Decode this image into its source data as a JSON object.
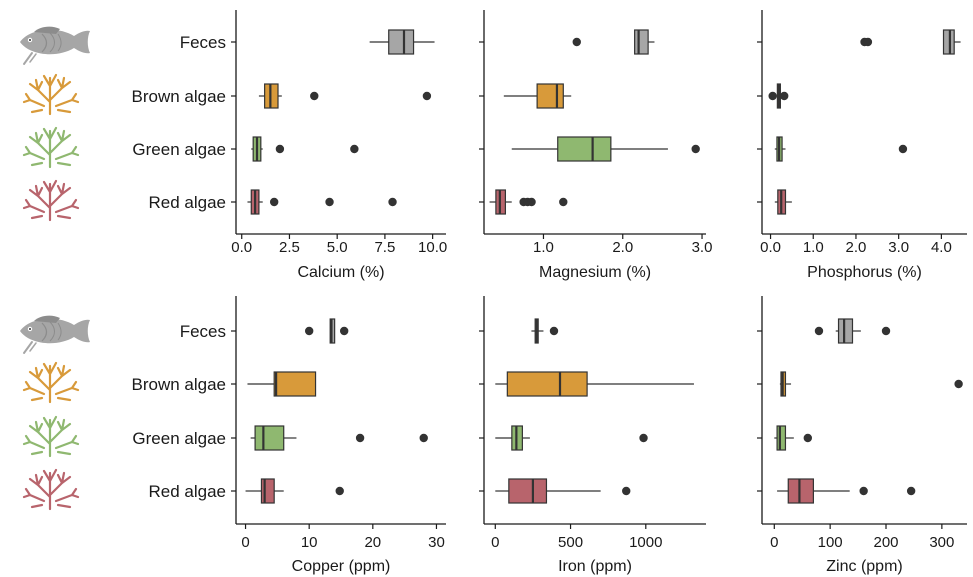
{
  "categories": [
    "Feces",
    "Brown algae",
    "Green algae",
    "Red algae"
  ],
  "colors": {
    "Feces": "#a6a6a6",
    "Brown algae": "#d89a3a",
    "Green algae": "#8fb870",
    "Red algae": "#b8646c",
    "outlier": "#333333",
    "line": "#333333"
  },
  "icons": [
    "fish-icon",
    "brown-algae-icon",
    "green-algae-icon",
    "red-algae-icon"
  ],
  "chart_data": [
    {
      "type": "boxplot",
      "xlabel": "Calcium (%)",
      "xlim": [
        -0.3,
        10.7
      ],
      "ticks": [
        0,
        2.5,
        5,
        7.5,
        10
      ],
      "tick_labels": [
        "0.0",
        "2.5",
        "5.0",
        "7.5",
        "10.0"
      ],
      "boxes": [
        {
          "category": "Feces",
          "whisker_low": 6.7,
          "q1": 7.7,
          "median": 8.5,
          "q3": 9.0,
          "whisker_high": 10.1,
          "outliers": []
        },
        {
          "category": "Brown algae",
          "whisker_low": 0.9,
          "q1": 1.2,
          "median": 1.5,
          "q3": 1.9,
          "whisker_high": 2.1,
          "outliers": [
            3.8,
            9.7
          ]
        },
        {
          "category": "Green algae",
          "whisker_low": 0.5,
          "q1": 0.6,
          "median": 0.8,
          "q3": 1.0,
          "whisker_high": 1.1,
          "outliers": [
            2.0,
            5.9
          ]
        },
        {
          "category": "Red algae",
          "whisker_low": 0.3,
          "q1": 0.5,
          "median": 0.7,
          "q3": 0.9,
          "whisker_high": 1.1,
          "outliers": [
            1.7,
            4.6,
            7.9
          ]
        }
      ]
    },
    {
      "type": "boxplot",
      "xlabel": "Magnesium (%)",
      "xlim": [
        0.25,
        3.05
      ],
      "ticks": [
        1,
        2,
        3
      ],
      "tick_labels": [
        "1.0",
        "2.0",
        "3.0"
      ],
      "boxes": [
        {
          "category": "Feces",
          "whisker_low": 2.15,
          "q1": 2.15,
          "median": 2.2,
          "q3": 2.32,
          "whisker_high": 2.4,
          "outliers": [
            1.42
          ]
        },
        {
          "category": "Brown algae",
          "whisker_low": 0.5,
          "q1": 0.92,
          "median": 1.17,
          "q3": 1.25,
          "whisker_high": 1.35,
          "outliers": []
        },
        {
          "category": "Green algae",
          "whisker_low": 0.6,
          "q1": 1.18,
          "median": 1.62,
          "q3": 1.85,
          "whisker_high": 2.57,
          "outliers": [
            2.92
          ]
        },
        {
          "category": "Red algae",
          "whisker_low": 0.32,
          "q1": 0.4,
          "median": 0.45,
          "q3": 0.52,
          "whisker_high": 0.6,
          "outliers": [
            0.75,
            0.8,
            0.85,
            1.25
          ]
        }
      ]
    },
    {
      "type": "boxplot",
      "xlabel": "Phosphorus (%)",
      "xlim": [
        -0.2,
        4.6
      ],
      "ticks": [
        0,
        1,
        2,
        3,
        4
      ],
      "tick_labels": [
        "0.0",
        "1.0",
        "2.0",
        "3.0",
        "4.0"
      ],
      "boxes": [
        {
          "category": "Feces",
          "whisker_low": 4.05,
          "q1": 4.05,
          "median": 4.2,
          "q3": 4.3,
          "whisker_high": 4.45,
          "outliers": [
            2.2,
            2.28
          ]
        },
        {
          "category": "Brown algae",
          "whisker_low": 0.12,
          "q1": 0.16,
          "median": 0.2,
          "q3": 0.23,
          "whisker_high": 0.27,
          "outliers": [
            0.05,
            0.32
          ]
        },
        {
          "category": "Green algae",
          "whisker_low": 0.1,
          "q1": 0.15,
          "median": 0.2,
          "q3": 0.27,
          "whisker_high": 0.35,
          "outliers": [
            3.1
          ]
        },
        {
          "category": "Red algae",
          "whisker_low": 0.1,
          "q1": 0.17,
          "median": 0.25,
          "q3": 0.35,
          "whisker_high": 0.5,
          "outliers": []
        }
      ]
    },
    {
      "type": "boxplot",
      "xlabel": "Copper (ppm)",
      "xlim": [
        -1.5,
        31.5
      ],
      "ticks": [
        0,
        10,
        20,
        30
      ],
      "tick_labels": [
        "0",
        "10",
        "20",
        "30"
      ],
      "boxes": [
        {
          "category": "Feces",
          "whisker_low": 13.3,
          "q1": 13.3,
          "median": 13.5,
          "q3": 14.0,
          "whisker_high": 14.0,
          "outliers": [
            10.0,
            15.5
          ]
        },
        {
          "category": "Brown algae",
          "whisker_low": 0.3,
          "q1": 4.5,
          "median": 4.8,
          "q3": 11.0,
          "whisker_high": 11.0,
          "outliers": []
        },
        {
          "category": "Green algae",
          "whisker_low": 0.8,
          "q1": 1.5,
          "median": 2.8,
          "q3": 6.0,
          "whisker_high": 8.0,
          "outliers": [
            18.0,
            28.0
          ]
        },
        {
          "category": "Red algae",
          "whisker_low": 0.0,
          "q1": 2.5,
          "median": 3.0,
          "q3": 4.5,
          "whisker_high": 6.0,
          "outliers": [
            14.8
          ]
        }
      ]
    },
    {
      "type": "boxplot",
      "xlabel": "Iron (ppm)",
      "xlim": [
        -75,
        1400
      ],
      "ticks": [
        0,
        500,
        1000
      ],
      "tick_labels": [
        "0",
        "500",
        "1000"
      ],
      "boxes": [
        {
          "category": "Feces",
          "whisker_low": 240,
          "q1": 265,
          "median": 275,
          "q3": 285,
          "whisker_high": 320,
          "outliers": [
            390
          ]
        },
        {
          "category": "Brown algae",
          "whisker_low": 0,
          "q1": 80,
          "median": 430,
          "q3": 610,
          "whisker_high": 1320,
          "outliers": []
        },
        {
          "category": "Green algae",
          "whisker_low": 0,
          "q1": 110,
          "median": 140,
          "q3": 180,
          "whisker_high": 230,
          "outliers": [
            985
          ]
        },
        {
          "category": "Red algae",
          "whisker_low": 0,
          "q1": 90,
          "median": 250,
          "q3": 340,
          "whisker_high": 700,
          "outliers": [
            870
          ]
        }
      ]
    },
    {
      "type": "boxplot",
      "xlabel": "Zinc (ppm)",
      "xlim": [
        -22,
        345
      ],
      "ticks": [
        0,
        100,
        200,
        300
      ],
      "tick_labels": [
        "0",
        "100",
        "200",
        "300"
      ],
      "boxes": [
        {
          "category": "Feces",
          "whisker_low": 110,
          "q1": 115,
          "median": 125,
          "q3": 140,
          "whisker_high": 155,
          "outliers": [
            80,
            200
          ]
        },
        {
          "category": "Brown algae",
          "whisker_low": 10,
          "q1": 12,
          "median": 15,
          "q3": 20,
          "whisker_high": 30,
          "outliers": [
            330
          ]
        },
        {
          "category": "Green algae",
          "whisker_low": 0,
          "q1": 5,
          "median": 10,
          "q3": 20,
          "whisker_high": 35,
          "outliers": [
            60
          ]
        },
        {
          "category": "Red algae",
          "whisker_low": 5,
          "q1": 25,
          "median": 45,
          "q3": 70,
          "whisker_high": 135,
          "outliers": [
            160,
            245
          ]
        }
      ]
    }
  ]
}
